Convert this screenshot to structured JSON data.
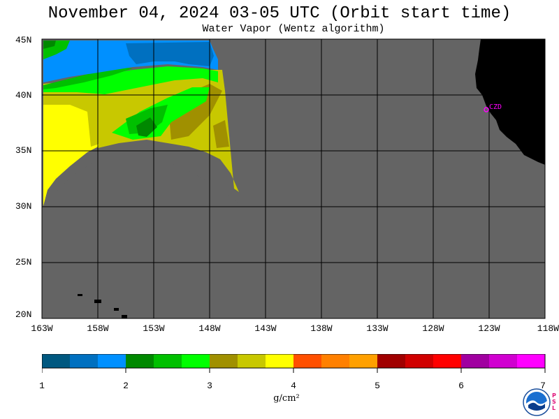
{
  "title": "November 04, 2024  03-05 UTC  (Orbit start time)",
  "subtitle": "Water Vapor (Wentz algorithm)",
  "map": {
    "lon_range": [
      -163,
      -118
    ],
    "lat_range": [
      20,
      45
    ],
    "lat_labels": [
      "45N",
      "40N",
      "35N",
      "30N",
      "25N",
      "20N"
    ],
    "lon_labels": [
      "163W",
      "158W",
      "153W",
      "148W",
      "143W",
      "138W",
      "133W",
      "128W",
      "123W",
      "118W"
    ],
    "station_label": "CZD",
    "colors": {
      "no_data": "#646464",
      "land": "#000000",
      "grid": "#000000",
      "station": "#ff00ff"
    }
  },
  "colorbar": {
    "colors": [
      "#005880",
      "#0070c0",
      "#0090ff",
      "#008800",
      "#00c000",
      "#00ff00",
      "#a09000",
      "#c8c800",
      "#ffff00",
      "#ff5000",
      "#ff8000",
      "#ffa000",
      "#a00000",
      "#d00000",
      "#ff0000",
      "#a000a0",
      "#d000d0",
      "#ff00ff"
    ],
    "tick_labels": [
      "1",
      "2",
      "3",
      "4",
      "5",
      "6",
      "7"
    ],
    "units": "g/cm²"
  },
  "logo": {
    "name": "NOAA",
    "side_text": "PSL"
  }
}
